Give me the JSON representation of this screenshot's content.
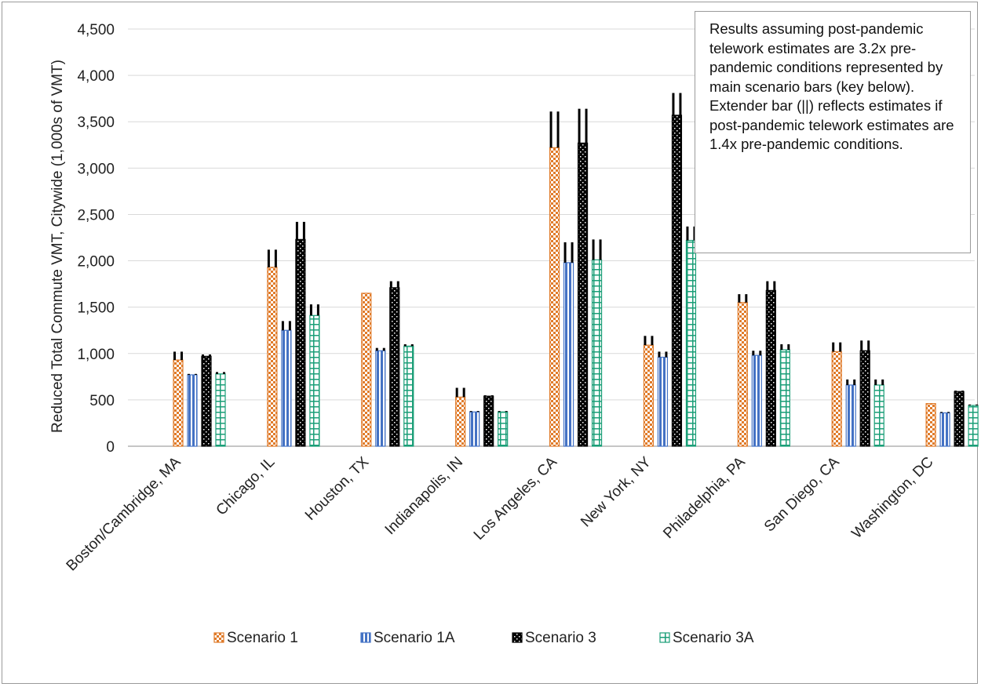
{
  "chart_data": {
    "type": "bar",
    "title": "",
    "xlabel": "",
    "ylabel": "Reduced Total Commute VMT, Citywide (1,000s of VMT)",
    "ylim": [
      0,
      4500
    ],
    "yticks": [
      0,
      500,
      1000,
      1500,
      2000,
      2500,
      3000,
      3500,
      4000,
      4500
    ],
    "ytick_labels": [
      "0",
      "500",
      "1,000",
      "1,500",
      "2,000",
      "2,500",
      "3,000",
      "3,500",
      "4,000",
      "4,500"
    ],
    "categories": [
      "Boston/Cambridge, MA",
      "Chicago, IL",
      "Houston, TX",
      "Indianapolis, IN",
      "Los Angeles, CA",
      "New York, NY",
      "Philadelphia, PA",
      "San Diego, CA",
      "Washington, DC"
    ],
    "series": [
      {
        "name": "Scenario 1",
        "color": "#e07b2a",
        "pattern": "checker",
        "values": [
          930,
          1930,
          1650,
          530,
          3220,
          1090,
          1550,
          1020,
          460
        ],
        "extender_top": [
          1020,
          2120,
          1650,
          630,
          3610,
          1190,
          1640,
          1120,
          460
        ]
      },
      {
        "name": "Scenario 1A",
        "color": "#4472c4",
        "pattern": "vertical-stripes",
        "values": [
          770,
          1250,
          1030,
          370,
          1980,
          960,
          980,
          660,
          360
        ],
        "extender_top": [
          780,
          1350,
          1060,
          380,
          2200,
          1020,
          1030,
          720,
          370
        ]
      },
      {
        "name": "Scenario 3",
        "color": "#000000",
        "pattern": "dots",
        "values": [
          970,
          2230,
          1710,
          540,
          3270,
          3570,
          1680,
          1030,
          590
        ],
        "extender_top": [
          990,
          2420,
          1780,
          550,
          3640,
          3810,
          1780,
          1140,
          600
        ]
      },
      {
        "name": "Scenario 3A",
        "color": "#1a9e77",
        "pattern": "grid",
        "values": [
          780,
          1410,
          1080,
          370,
          2010,
          2220,
          1040,
          660,
          440
        ],
        "extender_top": [
          800,
          1530,
          1100,
          380,
          2230,
          2370,
          1100,
          720,
          450
        ]
      }
    ],
    "annotation": "Results assuming post-pandemic telework estimates are 3.2x pre-pandemic conditions represented by main scenario bars (key below). Extender bar (||) reflects estimates if post-pandemic telework estimates are 1.4x pre-pandemic conditions.",
    "grid": true,
    "legend": "bottom"
  }
}
